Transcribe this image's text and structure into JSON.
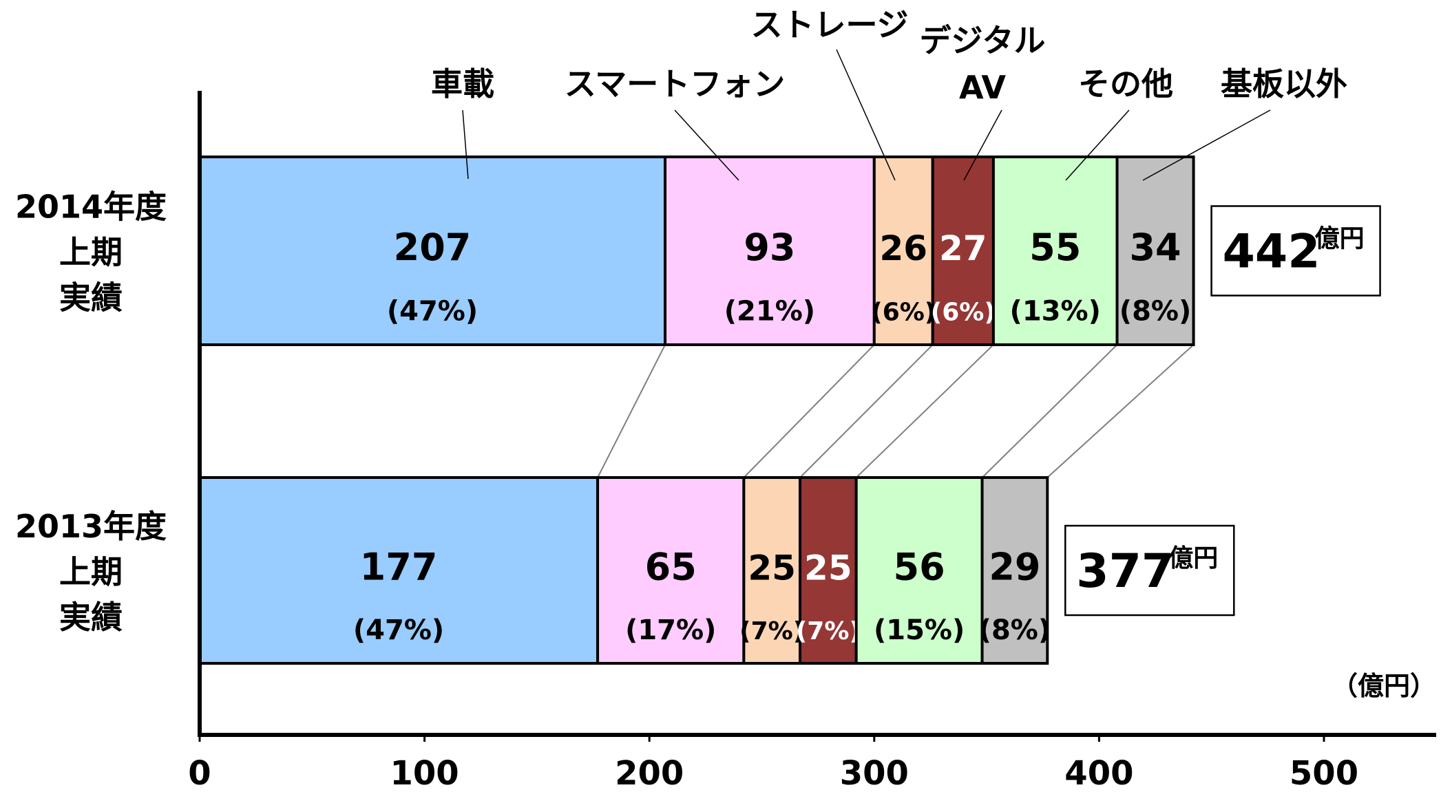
{
  "chart_data": {
    "type": "bar",
    "orientation": "horizontal",
    "stacked": true,
    "unit": "（億円）",
    "xlim": [
      0,
      550
    ],
    "x_ticks": [
      "0",
      "100",
      "200",
      "300",
      "400",
      "500"
    ],
    "categories": [
      [
        "2014年度",
        "上期",
        "実績"
      ],
      [
        "2013年度",
        "上期",
        "実績"
      ]
    ],
    "totals": [
      {
        "value": "442",
        "unit": "億円"
      },
      {
        "value": "377",
        "unit": "億円"
      }
    ],
    "series": [
      {
        "name": "車載",
        "values": [
          207,
          177
        ],
        "percents": [
          "(47%)",
          "(47%)"
        ],
        "color": "#99ccff",
        "text_color": "#000000"
      },
      {
        "name": "スマートフォン",
        "values": [
          93,
          65
        ],
        "percents": [
          "(21%)",
          "(17%)"
        ],
        "color": "#ffccff",
        "text_color": "#000000"
      },
      {
        "name": "ストレージ",
        "values": [
          26,
          25
        ],
        "percents": [
          "(6%)",
          "(7%)"
        ],
        "color": "#fcd5b5",
        "text_color": "#000000"
      },
      {
        "name": "デジタル\nAV",
        "values": [
          27,
          25
        ],
        "percents": [
          "(6%)",
          "(7%)"
        ],
        "color": "#953735",
        "text_color": "#ffffff"
      },
      {
        "name": "その他",
        "values": [
          55,
          56
        ],
        "percents": [
          "(13%)",
          "(15%)"
        ],
        "color": "#ccffcc",
        "text_color": "#000000"
      },
      {
        "name": "基板以外",
        "values": [
          34,
          29
        ],
        "percents": [
          "(8%)",
          "(8%)"
        ],
        "color": "#c0c0c0",
        "text_color": "#000000"
      }
    ],
    "grid": false,
    "legend": "callout-labels-top"
  }
}
